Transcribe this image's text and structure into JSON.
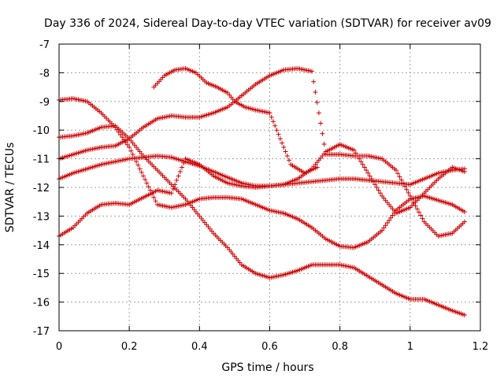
{
  "chart_data": {
    "type": "scatter",
    "title": "Day 336 of 2024, Sidereal Day-to-day VTEC variation (SDTVAR) for receiver av09",
    "xlabel": "GPS time / hours",
    "ylabel": "SDTVAR / TECUs",
    "xlim": [
      0,
      1.2
    ],
    "ylim": [
      -17,
      -7
    ],
    "xticks": [
      0,
      0.2,
      0.4,
      0.6,
      0.8,
      1,
      1.2
    ],
    "xtick_labels": [
      "0",
      "0.2",
      "0.4",
      "0.6",
      "0.8",
      "1",
      "1.2"
    ],
    "yticks": [
      -17,
      -16,
      -15,
      -14,
      -13,
      -12,
      -11,
      -10,
      -9,
      -8,
      -7
    ],
    "ytick_labels": [
      "-17",
      "-16",
      "-15",
      "-14",
      "-13",
      "-12",
      "-11",
      "-10",
      "-9",
      "-8",
      "-7"
    ],
    "grid": true,
    "marker": "plus",
    "color": "#cc0000",
    "series": [
      {
        "name": "s1",
        "x": [
          0.27,
          0.3,
          0.33,
          0.36,
          0.39,
          0.42,
          0.45,
          0.48,
          0.5,
          0.53,
          0.56,
          0.6,
          0.63,
          0.66,
          0.7,
          0.735
        ],
        "y": [
          -8.5,
          -8.1,
          -7.9,
          -7.85,
          -8.0,
          -8.35,
          -8.5,
          -8.7,
          -9.0,
          -9.2,
          -9.3,
          -9.4,
          -10.3,
          -11.2,
          -11.5,
          -11.3
        ]
      },
      {
        "name": "s2",
        "x": [
          0.0,
          0.04,
          0.08,
          0.12,
          0.16,
          0.2,
          0.24,
          0.28,
          0.32,
          0.36,
          0.4,
          0.44,
          0.48,
          0.52,
          0.56,
          0.6,
          0.64,
          0.68,
          0.72,
          0.76,
          0.8,
          0.84,
          0.88,
          0.92,
          0.96,
          1.0,
          1.04,
          1.08,
          1.12,
          1.155
        ],
        "y": [
          -8.95,
          -8.9,
          -9.0,
          -9.4,
          -9.9,
          -10.6,
          -11.6,
          -12.6,
          -12.7,
          -12.6,
          -12.4,
          -12.35,
          -12.35,
          -12.4,
          -12.6,
          -12.8,
          -12.9,
          -13.1,
          -13.4,
          -13.8,
          -14.05,
          -14.1,
          -13.9,
          -13.5,
          -12.8,
          -12.4,
          -12.3,
          -12.45,
          -12.6,
          -12.85
        ]
      },
      {
        "name": "s3",
        "x": [
          0.0,
          0.04,
          0.08,
          0.12,
          0.16,
          0.2,
          0.24,
          0.28,
          0.32,
          0.36,
          0.4,
          0.44,
          0.48,
          0.52,
          0.56,
          0.6,
          0.64,
          0.68,
          0.72,
          0.76,
          0.8,
          0.84,
          0.88,
          0.92,
          0.96,
          1.0,
          1.04,
          1.08,
          1.12,
          1.155
        ],
        "y": [
          -10.25,
          -10.2,
          -10.1,
          -9.9,
          -9.85,
          -10.3,
          -10.9,
          -11.4,
          -11.9,
          -12.4,
          -13.0,
          -13.6,
          -14.1,
          -14.7,
          -15.0,
          -15.15,
          -15.05,
          -14.9,
          -14.7,
          -14.7,
          -14.7,
          -14.8,
          -15.1,
          -15.4,
          -15.7,
          -15.9,
          -15.9,
          -16.1,
          -16.3,
          -16.45
        ]
      },
      {
        "name": "s4",
        "x": [
          0.0,
          0.04,
          0.08,
          0.12,
          0.16,
          0.2,
          0.24,
          0.28,
          0.32,
          0.36,
          0.4,
          0.44,
          0.48,
          0.52,
          0.56,
          0.6,
          0.64,
          0.68,
          0.72,
          0.76,
          0.8,
          0.84,
          0.88,
          0.92,
          0.96,
          1.0,
          1.04,
          1.08,
          1.12,
          1.155
        ],
        "y": [
          -11.0,
          -10.85,
          -10.7,
          -10.6,
          -10.55,
          -10.3,
          -9.9,
          -9.6,
          -9.5,
          -9.55,
          -9.55,
          -9.4,
          -9.2,
          -8.8,
          -8.4,
          -8.1,
          -7.9,
          -7.85,
          -7.95,
          -10.85,
          -10.85,
          -10.9,
          -10.9,
          -11.0,
          -11.4,
          -12.3,
          -13.2,
          -13.7,
          -13.6,
          -13.2
        ]
      },
      {
        "name": "s5",
        "x": [
          0.0,
          0.04,
          0.08,
          0.12,
          0.16,
          0.2,
          0.24,
          0.28,
          0.32,
          0.36,
          0.4,
          0.44,
          0.48,
          0.52,
          0.56,
          0.6,
          0.64,
          0.68,
          0.72,
          0.76,
          0.8,
          0.84,
          0.88,
          0.92,
          0.96,
          1.0,
          1.04,
          1.08,
          1.12,
          1.155
        ],
        "y": [
          -11.7,
          -11.5,
          -11.35,
          -11.2,
          -11.1,
          -11.0,
          -10.95,
          -10.9,
          -10.95,
          -11.1,
          -11.25,
          -11.45,
          -11.65,
          -11.85,
          -11.95,
          -11.95,
          -11.9,
          -11.85,
          -11.8,
          -11.75,
          -11.7,
          -11.7,
          -11.75,
          -11.8,
          -11.85,
          -11.9,
          -11.7,
          -11.5,
          -11.4,
          -11.35
        ]
      },
      {
        "name": "s6",
        "x": [
          0.0,
          0.04,
          0.08,
          0.12,
          0.16,
          0.2,
          0.24,
          0.28,
          0.32,
          0.36,
          0.4,
          0.44,
          0.48,
          0.52,
          0.56,
          0.6,
          0.64,
          0.68,
          0.72,
          0.76,
          0.8,
          0.84,
          0.88,
          0.92,
          0.96,
          1.0,
          1.04,
          1.08,
          1.12,
          1.155
        ],
        "y": [
          -13.7,
          -13.4,
          -12.9,
          -12.6,
          -12.55,
          -12.6,
          -12.35,
          -12.1,
          -12.2,
          -11.0,
          -11.2,
          -11.6,
          -11.85,
          -11.95,
          -12.0,
          -11.95,
          -11.9,
          -11.7,
          -11.35,
          -10.75,
          -10.5,
          -10.7,
          -11.5,
          -12.3,
          -12.9,
          -12.7,
          -12.2,
          -11.7,
          -11.3,
          -11.45
        ]
      }
    ]
  }
}
